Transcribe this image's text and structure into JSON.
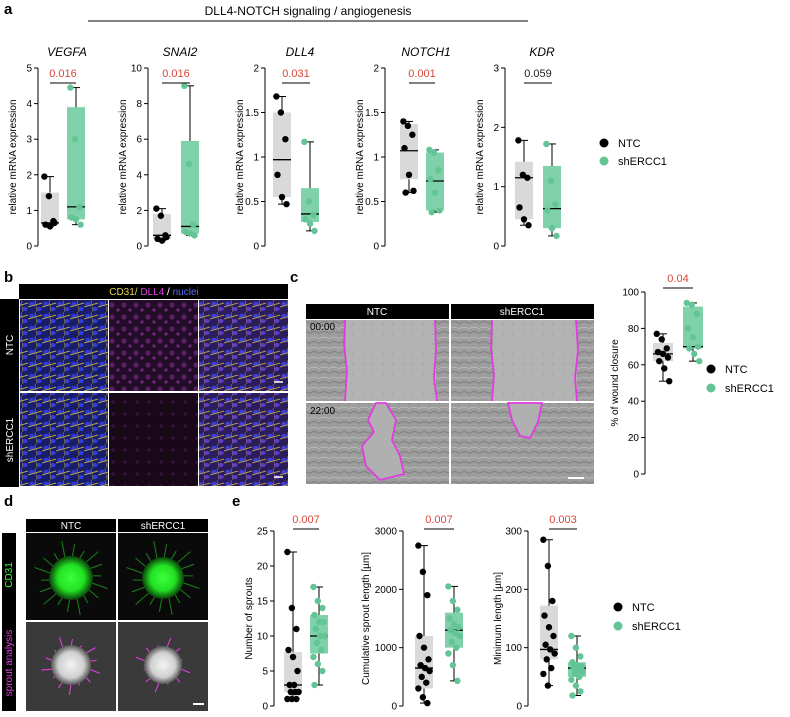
{
  "colors": {
    "ntc": "#000000",
    "sh": "#63c496",
    "pred": "#d9463a",
    "pblack": "#222222",
    "box_ntc": "#d9d9d9",
    "box_sh": "#7fd1aa"
  },
  "panel_labels": {
    "a": "a",
    "b": "b",
    "c": "c",
    "d": "d",
    "e": "e"
  },
  "panel_a": {
    "header": "DLL4-NOTCH signaling / angiogenesis",
    "ylabel": "relative mRNA expression",
    "legend": {
      "ntc": "NTC",
      "sh": "shERCC1"
    }
  },
  "panel_b": {
    "stain_cd31": "CD31/ ",
    "stain_dll4": "DLL4",
    "stain_sep": " / ",
    "stain_nuclei": "nuclei",
    "row_labels": [
      "NTC",
      "shERCC1"
    ]
  },
  "panel_c": {
    "col_labels": [
      "NTC",
      "shERCC1"
    ],
    "times": [
      "00:00",
      "22:00"
    ],
    "legend": {
      "ntc": "NTC",
      "sh": "shERCC1"
    }
  },
  "panel_d": {
    "col_labels": [
      "NTC",
      "shERCC1"
    ],
    "row_labels": [
      "CD31",
      "sprout analysis"
    ]
  },
  "panel_e": {
    "legend": {
      "ntc": "NTC",
      "sh": "shERCC1"
    }
  },
  "chart_data": [
    {
      "type": "box",
      "title": "VEGFA",
      "xlabel": "",
      "ylabel": "relative mRNA expression",
      "ylim": [
        0,
        5
      ],
      "yticks": [
        0,
        1,
        2,
        3,
        4,
        5
      ],
      "pvalue": "0.016",
      "pvalue_significant": true,
      "series": [
        {
          "name": "NTC",
          "q1": 0.6,
          "median": 0.65,
          "q3": 1.5,
          "min": 0.55,
          "max": 1.95,
          "points": [
            1.95,
            1.4,
            0.7,
            0.6,
            0.55,
            0.65
          ]
        },
        {
          "name": "shERCC1",
          "q1": 0.75,
          "median": 1.1,
          "q3": 3.9,
          "min": 0.6,
          "max": 4.45,
          "points": [
            4.45,
            3.0,
            1.1,
            0.8,
            0.75,
            0.6
          ]
        }
      ]
    },
    {
      "type": "box",
      "title": "SNAI2",
      "xlabel": "",
      "ylabel": "relative mRNA expression",
      "ylim": [
        0,
        10
      ],
      "yticks": [
        0,
        2,
        4,
        6,
        8,
        10
      ],
      "pvalue": "0.016",
      "pvalue_significant": true,
      "series": [
        {
          "name": "NTC",
          "q1": 0.4,
          "median": 0.6,
          "q3": 1.8,
          "min": 0.3,
          "max": 2.1,
          "points": [
            2.1,
            1.7,
            0.6,
            0.4,
            0.3,
            0.5
          ]
        },
        {
          "name": "shERCC1",
          "q1": 0.7,
          "median": 1.1,
          "q3": 5.9,
          "min": 0.6,
          "max": 9.0,
          "points": [
            9.0,
            4.6,
            1.2,
            0.8,
            0.7,
            0.6
          ]
        }
      ]
    },
    {
      "type": "box",
      "title": "DLL4",
      "xlabel": "",
      "ylabel": "relative mRNA expression",
      "ylim": [
        0,
        2
      ],
      "yticks": [
        0,
        0.5,
        1.0,
        1.5,
        2.0
      ],
      "pvalue": "0.031",
      "pvalue_significant": true,
      "series": [
        {
          "name": "NTC",
          "q1": 0.55,
          "median": 0.97,
          "q3": 1.5,
          "min": 0.47,
          "max": 1.68,
          "points": [
            1.68,
            1.5,
            1.2,
            0.8,
            0.55,
            0.47
          ]
        },
        {
          "name": "shERCC1",
          "q1": 0.27,
          "median": 0.36,
          "q3": 0.65,
          "min": 0.17,
          "max": 1.17,
          "points": [
            1.17,
            0.5,
            0.35,
            0.3,
            0.25,
            0.17
          ]
        }
      ]
    },
    {
      "type": "box",
      "title": "NOTCH1",
      "xlabel": "",
      "ylabel": "relative mRNA expression",
      "ylim": [
        0,
        2
      ],
      "yticks": [
        0,
        0.5,
        1.0,
        1.5,
        2.0
      ],
      "pvalue": "0.001",
      "pvalue_significant": true,
      "series": [
        {
          "name": "NTC",
          "q1": 0.75,
          "median": 1.07,
          "q3": 1.37,
          "min": 0.6,
          "max": 1.4,
          "points": [
            1.4,
            1.35,
            1.25,
            1.1,
            0.8,
            0.62,
            0.6
          ]
        },
        {
          "name": "shERCC1",
          "q1": 0.4,
          "median": 0.73,
          "q3": 1.05,
          "min": 0.38,
          "max": 1.08,
          "points": [
            1.08,
            1.05,
            0.85,
            0.75,
            0.6,
            0.4,
            0.38
          ]
        }
      ]
    },
    {
      "type": "box",
      "title": "KDR",
      "xlabel": "",
      "ylabel": "relative mRNA expression",
      "ylim": [
        0,
        3
      ],
      "yticks": [
        0,
        1,
        2,
        3
      ],
      "pvalue": "0.059",
      "pvalue_significant": false,
      "series": [
        {
          "name": "NTC",
          "q1": 0.45,
          "median": 1.15,
          "q3": 1.42,
          "min": 0.35,
          "max": 1.78,
          "points": [
            1.78,
            1.2,
            1.15,
            0.65,
            0.45,
            0.35
          ]
        },
        {
          "name": "shERCC1",
          "q1": 0.3,
          "median": 0.63,
          "q3": 1.35,
          "min": 0.17,
          "max": 1.72,
          "points": [
            1.72,
            1.1,
            0.7,
            0.6,
            0.3,
            0.17
          ]
        }
      ]
    },
    {
      "type": "box",
      "title": "",
      "xlabel": "",
      "ylabel": "% of wound closure",
      "ylim": [
        0,
        100
      ],
      "yticks": [
        0,
        20,
        40,
        60,
        80,
        100
      ],
      "pvalue": "0.04",
      "pvalue_significant": true,
      "series": [
        {
          "name": "NTC",
          "q1": 62,
          "median": 66,
          "q3": 72,
          "min": 51,
          "max": 77,
          "points": [
            77,
            74,
            69,
            67,
            66,
            64,
            62,
            58,
            51
          ]
        },
        {
          "name": "shERCC1",
          "q1": 69,
          "median": 70,
          "q3": 92,
          "min": 62,
          "max": 94,
          "points": [
            94,
            93,
            88,
            80,
            75,
            70,
            69,
            66,
            62
          ]
        }
      ]
    },
    {
      "type": "box",
      "title": "",
      "xlabel": "",
      "ylabel": "Number of sprouts",
      "ylim": [
        0,
        25
      ],
      "yticks": [
        0,
        5,
        10,
        15,
        20,
        25
      ],
      "pvalue": "0.007",
      "pvalue_significant": true,
      "series": [
        {
          "name": "NTC",
          "q1": 2,
          "median": 3,
          "q3": 7.7,
          "min": 1,
          "max": 22,
          "points": [
            22,
            14,
            11,
            8,
            7,
            5,
            3,
            3,
            2,
            2,
            2,
            1,
            1,
            1
          ]
        },
        {
          "name": "shERCC1",
          "q1": 7.5,
          "median": 10,
          "q3": 13,
          "min": 3,
          "max": 17,
          "points": [
            17,
            15,
            14,
            13,
            12,
            12,
            11,
            10,
            10,
            9,
            8,
            7,
            6,
            5,
            3
          ]
        }
      ]
    },
    {
      "type": "box",
      "title": "",
      "xlabel": "",
      "ylabel": "Cumulative sprout length [µm]",
      "ylim": [
        0,
        3000
      ],
      "yticks": [
        0,
        1000,
        2000,
        3000
      ],
      "pvalue": "0.007",
      "pvalue_significant": true,
      "series": [
        {
          "name": "NTC",
          "q1": 300,
          "median": 650,
          "q3": 1200,
          "min": 50,
          "max": 2750,
          "points": [
            2750,
            2300,
            1900,
            1200,
            1000,
            800,
            700,
            650,
            600,
            500,
            400,
            300,
            150,
            50
          ]
        },
        {
          "name": "shERCC1",
          "q1": 1000,
          "median": 1300,
          "q3": 1600,
          "min": 430,
          "max": 2050,
          "points": [
            2050,
            1800,
            1650,
            1500,
            1400,
            1350,
            1300,
            1250,
            1200,
            1100,
            1000,
            900,
            700,
            430
          ]
        }
      ]
    },
    {
      "type": "box",
      "title": "",
      "xlabel": "",
      "ylabel": "Minimum length [µm]",
      "ylim": [
        0,
        300
      ],
      "yticks": [
        0,
        100,
        200,
        300
      ],
      "pvalue": "0.003",
      "pvalue_significant": true,
      "series": [
        {
          "name": "NTC",
          "q1": 80,
          "median": 97,
          "q3": 172,
          "min": 35,
          "max": 285,
          "points": [
            285,
            240,
            180,
            155,
            135,
            120,
            105,
            97,
            90,
            80,
            65,
            55,
            35
          ]
        },
        {
          "name": "shERCC1",
          "q1": 50,
          "median": 65,
          "q3": 75,
          "min": 18,
          "max": 120,
          "points": [
            120,
            100,
            85,
            75,
            70,
            68,
            65,
            62,
            58,
            55,
            50,
            45,
            35,
            25,
            18
          ]
        }
      ]
    }
  ]
}
